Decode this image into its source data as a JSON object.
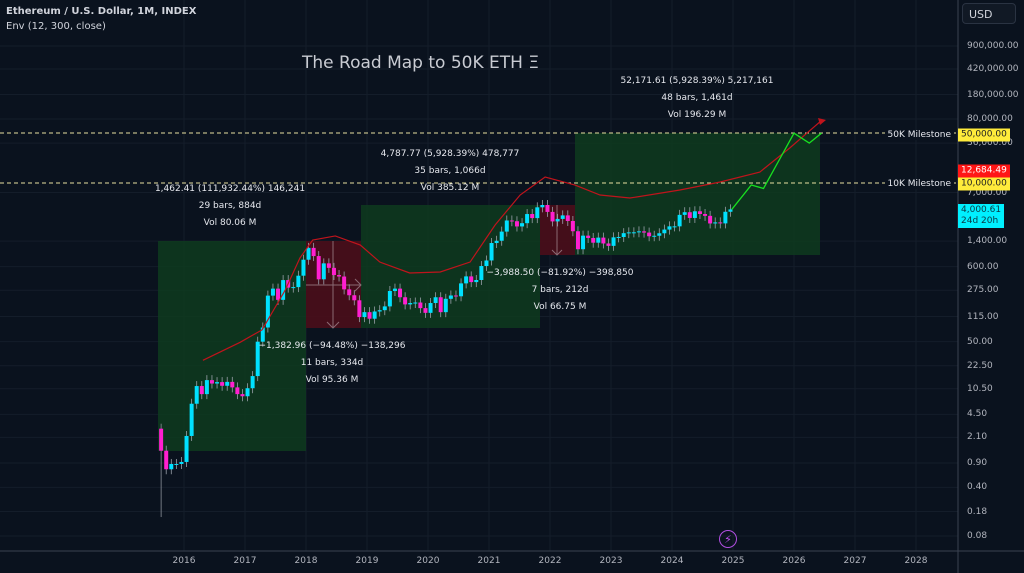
{
  "header": {
    "symbol": "Ethereum / U.S. Dollar, 1M, INDEX",
    "indicator": "Env (12, 300, close)"
  },
  "title": "The Road Map to 50K ETH Ξ",
  "currency": "USD",
  "price_axis": [
    "900,000.00",
    "420,000.00",
    "180,000.00",
    "80,000.00",
    "36,000.00",
    "7,000.00",
    "1,400.00",
    "600.00",
    "275.00",
    "115.00",
    "50.00",
    "22.50",
    "10.50",
    "4.50",
    "2.10",
    "0.90",
    "0.40",
    "0.18",
    "0.08"
  ],
  "price_axis_values": [
    900000,
    420000,
    180000,
    80000,
    36000,
    7000,
    1400,
    600,
    275,
    115,
    50,
    22.5,
    10.5,
    4.5,
    2.1,
    0.9,
    0.4,
    0.18,
    0.08
  ],
  "time_axis": [
    "2016",
    "2017",
    "2018",
    "2019",
    "2020",
    "2021",
    "2022",
    "2023",
    "2024",
    "2025",
    "2026",
    "2027",
    "2028"
  ],
  "tags": {
    "milestone50": "50,000.00",
    "envelope": "12,684.49",
    "milestone10": "10,000.00",
    "last_price": "4,000.61",
    "countdown": "24d 20h"
  },
  "milestones": {
    "m50": "50K Milestone",
    "m10": "10K Milestone",
    "m50_value": 50000,
    "m10_value": 10000
  },
  "measures": [
    {
      "l1": "1,462.41 (111,932.44%) 146,241",
      "l2": "29 bars, 884d",
      "l3": "Vol 80.06 M"
    },
    {
      "l1": "−1,382.96 (−94.48%) −138,296",
      "l2": "11 bars, 334d",
      "l3": "Vol 95.36 M"
    },
    {
      "l1": "4,787.77 (5,928.39%) 478,777",
      "l2": "35 bars, 1,066d",
      "l3": "Vol 385.12 M"
    },
    {
      "l1": "−3,988.50 (−81.92%) −398,850",
      "l2": "7 bars, 212d",
      "l3": "Vol 66.75 M"
    },
    {
      "l1": "52,171.61 (5,928.39%) 5,217,161",
      "l2": "48 bars, 1,461d",
      "l3": "Vol 196.29 M"
    }
  ],
  "colors": {
    "up": "#00e1ff",
    "down": "#ff1fd0",
    "envelope": "#c0141c",
    "projection": "#18e020",
    "milestone": "#ffeb3b"
  },
  "chart_data": {
    "type": "candlestick",
    "start": "2015-08",
    "open_first": 2.8,
    "closes": [
      1.35,
      0.73,
      0.87,
      0.87,
      0.93,
      2.2,
      6.4,
      11.5,
      8.8,
      14,
      12.5,
      13.1,
      11.6,
      13.2,
      11,
      8.8,
      8.2,
      10.7,
      16,
      50,
      80,
      230,
      290,
      200,
      385,
      300,
      305,
      445,
      756,
      1119,
      853,
      395,
      670,
      577,
      455,
      433,
      283,
      233,
      197,
      113,
      133,
      107,
      136,
      142,
      161,
      268,
      290,
      218,
      172,
      180,
      183,
      152,
      130,
      180,
      218,
      133,
      207,
      231,
      225,
      345,
      435,
      360,
      386,
      613,
      737,
      1314,
      1416,
      1918,
      2773,
      2706,
      2275,
      2536,
      3433,
      3001,
      4288,
      4631,
      3683,
      2688,
      2920,
      3282,
      2727,
      1942,
      1070,
      1678,
      1553,
      1328,
      1572,
      1295,
      1196,
      1585,
      1605,
      1822,
      1870,
      1874,
      1934,
      1857,
      1645,
      1671,
      1815,
      2052,
      2282,
      2283,
      3340,
      3647,
      3015,
      3762,
      3436,
      3232,
      2513,
      2602,
      2518,
      3700,
      4000.61
    ],
    "envelope": [
      [
        2016.31,
        27
      ],
      [
        2016.92,
        49
      ],
      [
        2017.28,
        74
      ],
      [
        2017.66,
        277
      ],
      [
        2017.9,
        800
      ],
      [
        2018.11,
        1452
      ],
      [
        2018.48,
        1660
      ],
      [
        2018.89,
        1230
      ],
      [
        2019.21,
        700
      ],
      [
        2019.7,
        487
      ],
      [
        2020.2,
        503
      ],
      [
        2020.69,
        700
      ],
      [
        2021.1,
        2388
      ],
      [
        2021.51,
        6443
      ],
      [
        2021.92,
        11700
      ],
      [
        2022.41,
        8976
      ],
      [
        2022.82,
        6443
      ],
      [
        2023.31,
        5836
      ],
      [
        2024.13,
        7608
      ],
      [
        2024.79,
        9928
      ],
      [
        2025.44,
        13800
      ],
      [
        2025.93,
        30600
      ],
      [
        2026.46,
        77400
      ]
    ],
    "projection": [
      [
        2024.98,
        4000
      ],
      [
        2025.3,
        9000
      ],
      [
        2025.5,
        8000
      ],
      [
        2025.75,
        20000
      ],
      [
        2026.0,
        50000
      ],
      [
        2026.25,
        36000
      ],
      [
        2026.45,
        50000
      ]
    ]
  }
}
